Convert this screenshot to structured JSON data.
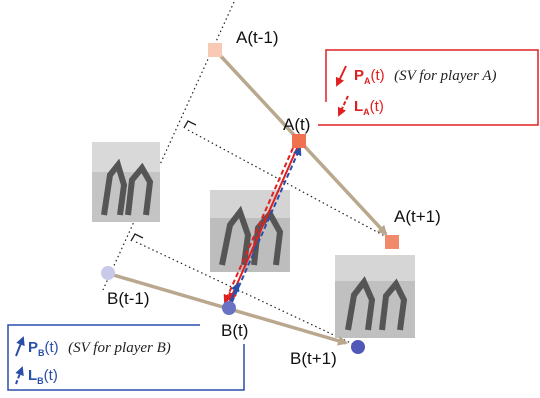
{
  "nodes": [
    {
      "label": "A(t-1)"
    },
    {
      "label": "A(t)"
    },
    {
      "label": "A(t+1)"
    },
    {
      "label": "B(t-1)"
    },
    {
      "label": "B(t)"
    },
    {
      "label": "B(t+1)"
    }
  ],
  "legend_a": {
    "items": [
      {
        "symbol": "P",
        "subscript": "A",
        "arg": "(t)",
        "note": "(SV for player A)"
      },
      {
        "symbol": "L",
        "subscript": "A",
        "arg": "(t)"
      }
    ]
  },
  "legend_b": {
    "items": [
      {
        "symbol": "P",
        "subscript": "B",
        "arg": "(t)",
        "note": "(SV for player B)"
      },
      {
        "symbol": "L",
        "subscript": "B",
        "arg": "(t)"
      }
    ]
  }
}
